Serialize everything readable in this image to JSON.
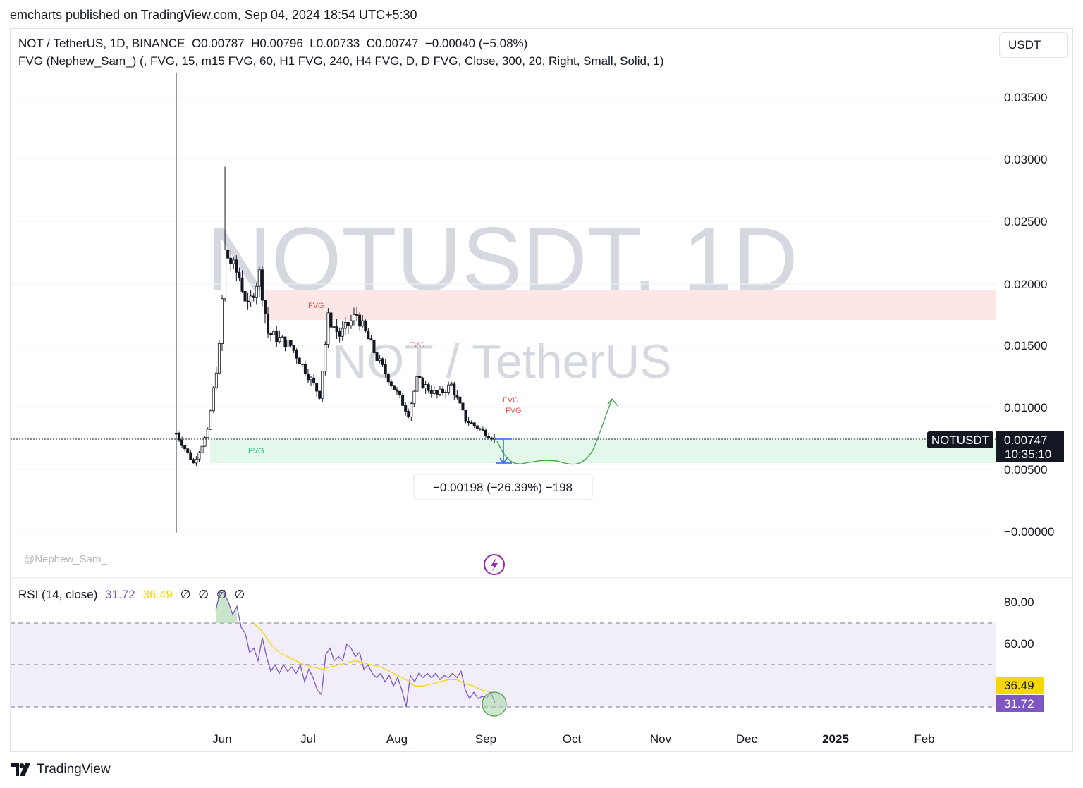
{
  "published": "emcharts published on TradingView.com, Sep 04, 2024 18:54 UTC+5:30",
  "legend": {
    "symbol_line": "NOT / TetherUS, 1D, BINANCE  O0.00787  H0.00796  L0.00733  C0.00747  −0.00040 (−5.08%)",
    "indicator_line": "FVG (Nephew_Sam_) (, FVG, 15, m15 FVG, 60, H1 FVG, 240, H4 FVG, D, D FVG, Close, 300, 20, Right, Small, Solid, 1)"
  },
  "currency_button": "USDT",
  "watermark": {
    "big": "NOTUSDT, 1D",
    "small": "NOT / TetherUS"
  },
  "author_tag": "@Nephew_Sam_",
  "price_label": {
    "symbol": "NOTUSDT",
    "price": "0.00747",
    "countdown": "10:35:10"
  },
  "measure_label": "−0.00198 (−26.39%) −198",
  "fvg_label": "FVG",
  "rsi": {
    "title": "RSI (14, close)",
    "value_rsi": "31.72",
    "value_ma": "36.49",
    "na_marks": [
      "∅",
      "∅",
      "∅",
      "∅"
    ],
    "axis": [
      "80.00",
      "60.00"
    ]
  },
  "footer": {
    "brand": "TradingView"
  },
  "colors": {
    "bear_fvg": "#fde6e6",
    "bull_fvg": "#e3f8ea",
    "rsi_line": "#7e57c2",
    "rsi_ma": "#f5d800",
    "projection": "#43a047",
    "measure": "#2962ff"
  },
  "chart_data": {
    "type": "candlestick",
    "series_name": "NOT / TetherUS",
    "timeframe": "1D",
    "exchange": "BINANCE",
    "ylim": [
      -0.0001,
      0.037
    ],
    "y_ticks": [
      "0.03500",
      "0.03000",
      "0.02500",
      "0.02000",
      "0.01500",
      "0.01000",
      "0.00500",
      "−0.00000"
    ],
    "x_ticks": [
      "Jun",
      "Jul",
      "Aug",
      "Sep",
      "Oct",
      "Nov",
      "Dec",
      "2025",
      "Feb"
    ],
    "last_close": 0.00747,
    "approx_close_path": [
      [
        "2024-05-16",
        0.0079
      ],
      [
        "2024-05-22",
        0.0055
      ],
      [
        "2024-05-27",
        0.008
      ],
      [
        "2024-05-31",
        0.0148
      ],
      [
        "2024-06-02",
        0.0225
      ],
      [
        "2024-06-07",
        0.0205
      ],
      [
        "2024-06-10",
        0.018
      ],
      [
        "2024-06-14",
        0.0208
      ],
      [
        "2024-06-17",
        0.016
      ],
      [
        "2024-06-25",
        0.015
      ],
      [
        "2024-07-05",
        0.011
      ],
      [
        "2024-07-08",
        0.0172
      ],
      [
        "2024-07-12",
        0.0158
      ],
      [
        "2024-07-18",
        0.0175
      ],
      [
        "2024-07-25",
        0.014
      ],
      [
        "2024-08-05",
        0.0095
      ],
      [
        "2024-08-08",
        0.0122
      ],
      [
        "2024-08-15",
        0.011
      ],
      [
        "2024-08-20",
        0.0118
      ],
      [
        "2024-08-25",
        0.009
      ],
      [
        "2024-09-04",
        0.00747
      ]
    ],
    "fvg_zones": [
      {
        "kind": "bearish",
        "top": 0.0195,
        "bottom": 0.0171,
        "label": "FVG"
      },
      {
        "kind": "bullish",
        "top": 0.0075,
        "bottom": 0.0056,
        "label": "FVG"
      }
    ],
    "measure": {
      "from": 0.00747,
      "to": 0.00549,
      "change": -0.00198,
      "percent": -26.39,
      "ticks": -198
    },
    "rsi_ylim": [
      20,
      90
    ],
    "rsi_bands": [
      70,
      50,
      30
    ],
    "rsi_last": 31.72,
    "rsi_ma_last": 36.49
  }
}
